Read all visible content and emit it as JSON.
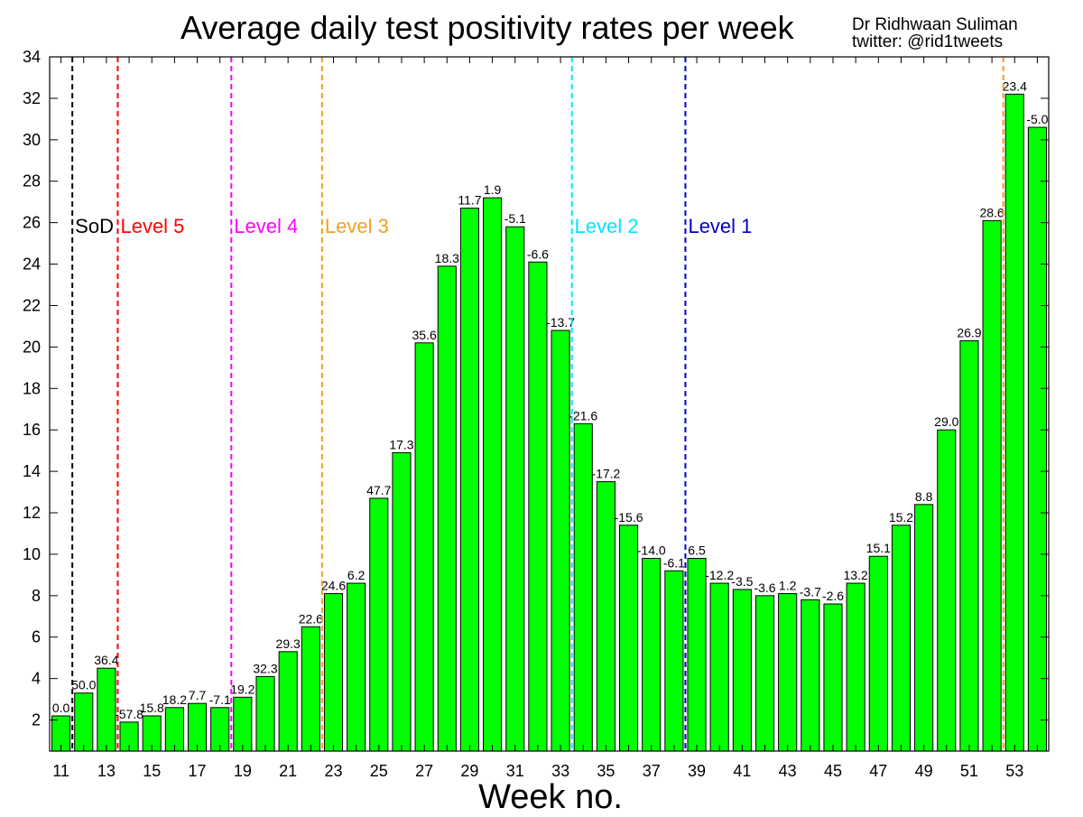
{
  "title": "Average daily test positivity rates per week",
  "credit": {
    "author": "Dr Ridhwaan Suliman",
    "handle": "twitter: @rid1tweets"
  },
  "chart_data": {
    "type": "bar",
    "title": "Average daily test positivity rates per week",
    "xlabel": "Week no.",
    "ylabel": "",
    "ylim": [
      0.5,
      34
    ],
    "yticks": [
      2,
      4,
      6,
      8,
      10,
      12,
      14,
      16,
      18,
      20,
      22,
      24,
      26,
      28,
      30,
      32,
      34
    ],
    "xticks": [
      11,
      13,
      15,
      17,
      19,
      21,
      23,
      25,
      27,
      29,
      31,
      33,
      35,
      37,
      39,
      41,
      43,
      45,
      47,
      49,
      51,
      53
    ],
    "grid": false,
    "bar_color": "#00ff00",
    "categories": [
      11,
      12,
      13,
      14,
      15,
      16,
      17,
      18,
      19,
      20,
      21,
      22,
      23,
      24,
      25,
      26,
      27,
      28,
      29,
      30,
      31,
      32,
      33,
      34,
      35,
      36,
      37,
      38,
      39,
      40,
      41,
      42,
      43,
      44,
      45,
      46,
      47,
      48,
      49,
      50,
      51,
      52,
      53,
      54
    ],
    "values": [
      2.2,
      3.3,
      4.5,
      1.9,
      2.2,
      2.6,
      2.8,
      2.6,
      3.1,
      4.1,
      5.3,
      6.5,
      8.1,
      8.6,
      12.7,
      14.9,
      20.2,
      23.9,
      26.7,
      27.2,
      25.8,
      24.1,
      20.8,
      16.3,
      13.5,
      11.4,
      9.8,
      9.2,
      9.8,
      8.6,
      8.3,
      8.0,
      8.1,
      7.8,
      7.6,
      8.6,
      9.9,
      11.4,
      12.4,
      16.0,
      20.3,
      26.1,
      32.2,
      30.6
    ],
    "bar_labels": [
      "0.0",
      "50.0",
      "36.4",
      "-57.8",
      "15.8",
      "18.2",
      "7.7",
      "-7.1",
      "19.2",
      "32.3",
      "29.3",
      "22.6",
      "24.6",
      "6.2",
      "47.7",
      "17.3",
      "35.6",
      "18.3",
      "11.7",
      "1.9",
      "-5.1",
      "-6.6",
      "-13.7",
      "-21.6",
      "-17.2",
      "-15.6",
      "-14.0",
      "-6.1",
      "6.5",
      "-12.2",
      "-3.5",
      "-3.6",
      "1.2",
      "-3.7",
      "-2.6",
      "13.2",
      "15.1",
      "15.2",
      "8.8",
      "29.0",
      "26.9",
      "28.6",
      "23.4",
      "-5.0"
    ],
    "annotations": [
      {
        "label": "SoD",
        "at": 11.5,
        "color": "#000000"
      },
      {
        "label": "Level 5",
        "at": 13.5,
        "color": "#ff0000"
      },
      {
        "label": "Level 4",
        "at": 18.5,
        "color": "#ff00ff"
      },
      {
        "label": "Level 3",
        "at": 22.5,
        "color": "#f0a020"
      },
      {
        "label": "Level 2",
        "at": 33.5,
        "color": "#00e5ff"
      },
      {
        "label": "Level 1",
        "at": 38.5,
        "color": "#0000cc"
      },
      {
        "label": "",
        "at": 52.5,
        "color": "#f0a020"
      }
    ]
  }
}
